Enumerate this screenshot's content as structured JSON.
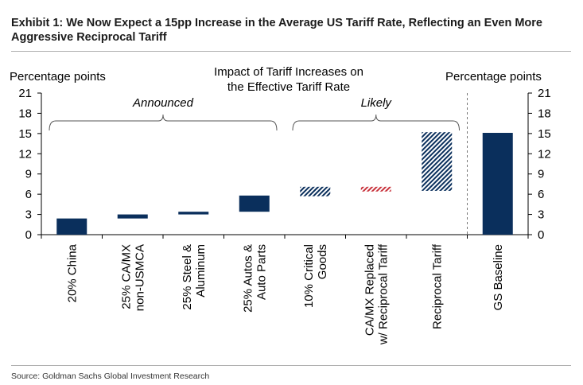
{
  "title": "Exhibit 1: We Now Expect a 15pp Increase in the Average US Tariff Rate, Reflecting an Even More Aggressive Reciprocal Tariff",
  "source": "Source: Goldman Sachs Global Investment Research",
  "chart_data": {
    "type": "bar",
    "subtype": "waterfall",
    "title_lines": [
      "Impact of Tariff Increases on",
      "the Effective Tariff Rate"
    ],
    "ylabel_left": "Percentage points",
    "ylabel_right": "Percentage points",
    "ylim": [
      0,
      21
    ],
    "yticks": [
      "0",
      "3",
      "6",
      "9",
      "12",
      "15",
      "18",
      "21"
    ],
    "group_labels": [
      {
        "label": "Announced",
        "first": 0,
        "last": 3
      },
      {
        "label": "Likely",
        "first": 4,
        "last": 6
      }
    ],
    "categories": [
      [
        "20% China"
      ],
      [
        "25% CA/MX",
        "non-USMCA"
      ],
      [
        "25% Steel &",
        "Aluminum"
      ],
      [
        "25% Autos &",
        "Auto Parts"
      ],
      [
        "10% Critical",
        "Goods"
      ],
      [
        "CA/MX Replaced",
        "w/ Reciprocal Tariff"
      ],
      [
        "Reciprocal Tariff"
      ],
      [
        "GS Baseline"
      ]
    ],
    "bars": [
      {
        "base": 0.0,
        "top": 2.4,
        "style": "solid",
        "color": "#0a2f5c"
      },
      {
        "base": 2.4,
        "top": 3.0,
        "style": "solid",
        "color": "#0a2f5c"
      },
      {
        "base": 3.0,
        "top": 3.4,
        "style": "solid",
        "color": "#0a2f5c"
      },
      {
        "base": 3.4,
        "top": 5.8,
        "style": "solid",
        "color": "#0a2f5c"
      },
      {
        "base": 5.7,
        "top": 7.1,
        "style": "hatched",
        "color": "#0a2f5c"
      },
      {
        "base": 6.4,
        "top": 7.1,
        "style": "hatched",
        "color": "#c8323c"
      },
      {
        "base": 6.5,
        "top": 15.2,
        "style": "hatched",
        "color": "#0a2f5c"
      },
      {
        "base": 0.0,
        "top": 15.1,
        "style": "solid",
        "color": "#0a2f5c"
      }
    ],
    "separator_after": 6,
    "grid": false
  }
}
